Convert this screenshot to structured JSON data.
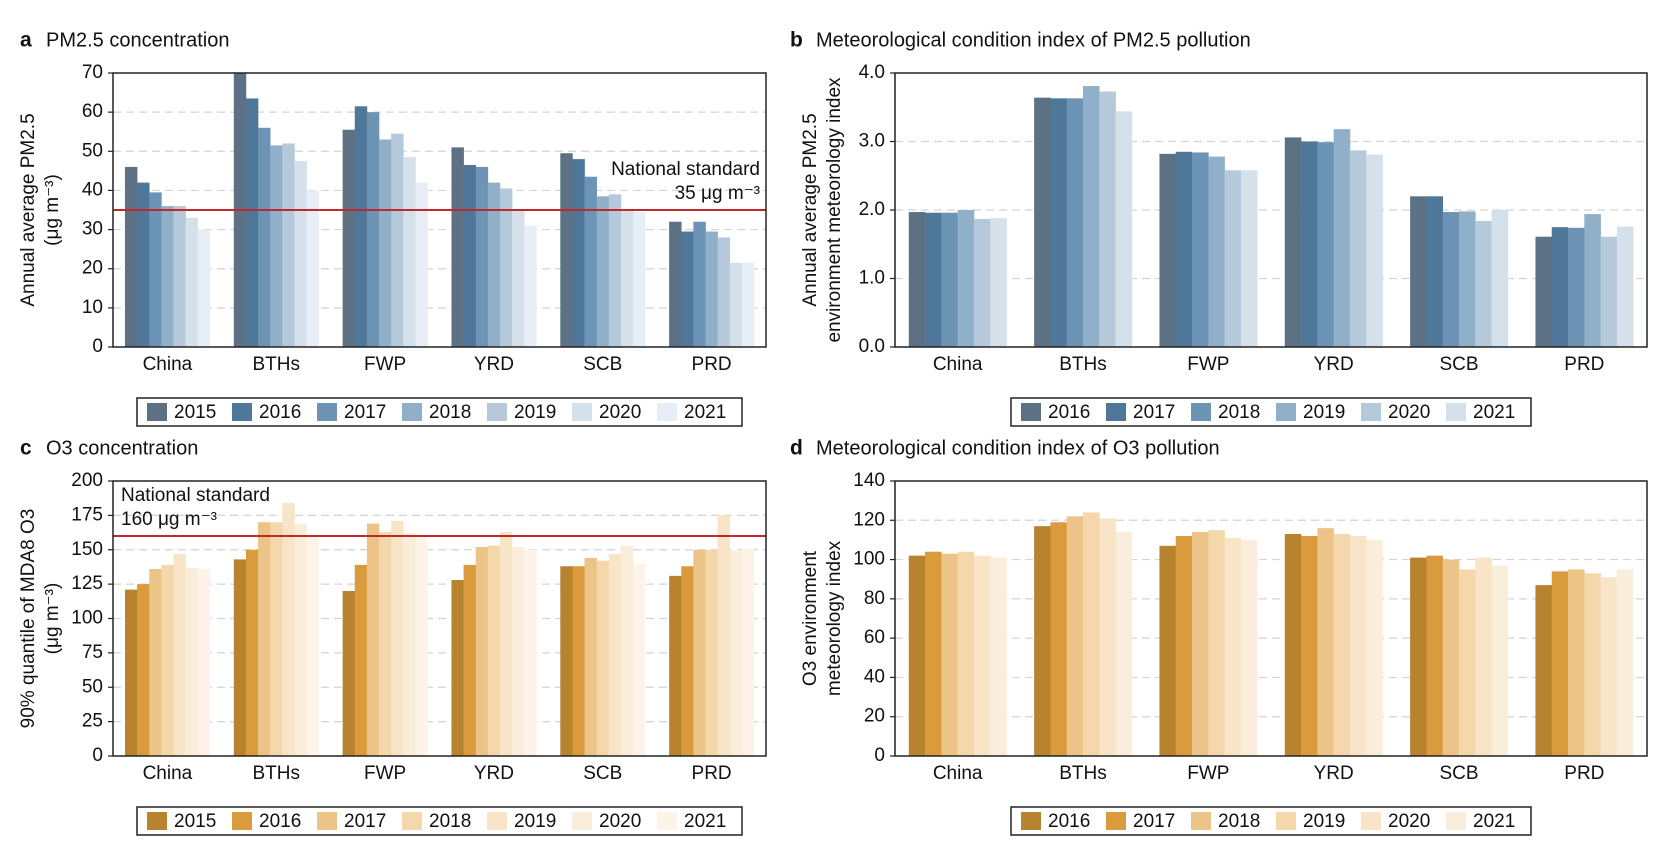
{
  "chart_data": [
    {
      "type": "bar",
      "panel": "a",
      "title": "PM2.5 concentration",
      "ylabel": [
        "Annual average PM2.5",
        "(μg m⁻³)"
      ],
      "categories": [
        "China",
        "BTHs",
        "FWP",
        "YRD",
        "SCB",
        "PRD"
      ],
      "series": [
        {
          "name": "2015",
          "color": "#5d7185",
          "values": [
            46,
            70,
            55.5,
            51,
            49.5,
            32
          ]
        },
        {
          "name": "2016",
          "color": "#4f7799",
          "values": [
            42,
            63.5,
            61.5,
            46.5,
            48,
            29.5
          ]
        },
        {
          "name": "2017",
          "color": "#6d93b5",
          "values": [
            39.5,
            56,
            60,
            46,
            43.5,
            32
          ]
        },
        {
          "name": "2018",
          "color": "#90b0ca",
          "values": [
            36,
            51.5,
            53,
            42,
            38.5,
            29.5
          ]
        },
        {
          "name": "2019",
          "color": "#b5c9db",
          "values": [
            36,
            52,
            54.5,
            40.5,
            39,
            28
          ]
        },
        {
          "name": "2020",
          "color": "#d4e0ea",
          "values": [
            33,
            47.5,
            48.5,
            35,
            35,
            21.5
          ]
        },
        {
          "name": "2021",
          "color": "#e7eef5",
          "values": [
            30,
            40,
            42,
            31,
            34.5,
            21.5
          ]
        }
      ],
      "ylim": [
        0,
        70
      ],
      "yticks": [
        0,
        10,
        20,
        30,
        40,
        50,
        60,
        70
      ],
      "grid": true,
      "reference_line": {
        "value": 35,
        "color": "#c0282b",
        "label": "National standard",
        "sublabel": "35 μg m⁻³"
      }
    },
    {
      "type": "bar",
      "panel": "b",
      "title": "Meteorological condition index of PM2.5 pollution",
      "ylabel": [
        "Annual average PM2.5",
        "environment meteorology index"
      ],
      "categories": [
        "China",
        "BTHs",
        "FWP",
        "YRD",
        "SCB",
        "PRD"
      ],
      "series": [
        {
          "name": "2016",
          "color": "#5d7185",
          "values": [
            1.97,
            3.64,
            2.82,
            3.06,
            2.2,
            1.61
          ]
        },
        {
          "name": "2017",
          "color": "#4f7799",
          "values": [
            1.96,
            3.63,
            2.85,
            3.0,
            2.2,
            1.75
          ]
        },
        {
          "name": "2018",
          "color": "#6d93b5",
          "values": [
            1.96,
            3.63,
            2.84,
            2.99,
            1.97,
            1.74
          ]
        },
        {
          "name": "2019",
          "color": "#90b0ca",
          "values": [
            2.0,
            3.81,
            2.78,
            3.18,
            1.98,
            1.94
          ]
        },
        {
          "name": "2020",
          "color": "#b5c9db",
          "values": [
            1.87,
            3.73,
            2.58,
            2.87,
            1.84,
            1.61
          ]
        },
        {
          "name": "2021",
          "color": "#d4e0ea",
          "values": [
            1.88,
            3.44,
            2.58,
            2.81,
            2.0,
            1.76
          ]
        }
      ],
      "ylim": [
        0,
        4
      ],
      "yticks": [
        {
          "value": 0,
          "label": "0.0"
        },
        {
          "value": 1,
          "label": "1.0"
        },
        {
          "value": 2,
          "label": "2.0"
        },
        {
          "value": 3,
          "label": "3.0"
        },
        {
          "value": 4,
          "label": "4.0"
        }
      ],
      "grid": true
    },
    {
      "type": "bar",
      "panel": "c",
      "title": "O3 concentration",
      "ylabel": [
        "90% quantile of MDA8 O3",
        "(μg m⁻³)"
      ],
      "categories": [
        "China",
        "BTHs",
        "FWP",
        "YRD",
        "SCB",
        "PRD"
      ],
      "series": [
        {
          "name": "2015",
          "color": "#b8832f",
          "values": [
            121,
            143,
            120,
            128,
            138,
            131
          ]
        },
        {
          "name": "2016",
          "color": "#d99b3b",
          "values": [
            125,
            150,
            139,
            139,
            138,
            138
          ]
        },
        {
          "name": "2017",
          "color": "#ecc488",
          "values": [
            136,
            170,
            169,
            152,
            144,
            150
          ]
        },
        {
          "name": "2018",
          "color": "#f4d8ab",
          "values": [
            139,
            170,
            163,
            153,
            142,
            150
          ]
        },
        {
          "name": "2019",
          "color": "#f8e5c8",
          "values": [
            147,
            184,
            171,
            163,
            147,
            175
          ]
        },
        {
          "name": "2020",
          "color": "#fbeddb",
          "values": [
            137,
            169,
            162,
            152,
            153,
            149
          ]
        },
        {
          "name": "2021",
          "color": "#fdf3e8",
          "values": [
            136,
            160,
            160,
            150,
            140,
            151
          ]
        }
      ],
      "ylim": [
        0,
        200
      ],
      "yticks": [
        0,
        25,
        50,
        75,
        100,
        125,
        150,
        175,
        200
      ],
      "grid": true,
      "reference_line": {
        "value": 160,
        "color": "#c0282b",
        "label": "National standard",
        "sublabel": "160 μg m⁻³"
      }
    },
    {
      "type": "bar",
      "panel": "d",
      "title": "Meteorological condition index of O3 pollution",
      "ylabel": [
        "O3 environment",
        "meteorology index"
      ],
      "categories": [
        "China",
        "BTHs",
        "FWP",
        "YRD",
        "SCB",
        "PRD"
      ],
      "series": [
        {
          "name": "2016",
          "color": "#b8832f",
          "values": [
            102,
            117,
            107,
            113,
            101,
            87
          ]
        },
        {
          "name": "2017",
          "color": "#d99b3b",
          "values": [
            104,
            119,
            112,
            112,
            102,
            94
          ]
        },
        {
          "name": "2018",
          "color": "#ecc488",
          "values": [
            103,
            122,
            114,
            116,
            100,
            95
          ]
        },
        {
          "name": "2019",
          "color": "#f4d8ab",
          "values": [
            104,
            124,
            115,
            113,
            95,
            93
          ]
        },
        {
          "name": "2020",
          "color": "#f8e5c8",
          "values": [
            102,
            121,
            111,
            112,
            101,
            91
          ]
        },
        {
          "name": "2021",
          "color": "#fbeddb",
          "values": [
            101,
            114,
            110,
            110,
            97,
            95
          ]
        }
      ],
      "ylim": [
        0,
        140
      ],
      "yticks": [
        0,
        20,
        40,
        60,
        80,
        100,
        120,
        140
      ],
      "grid": true
    }
  ]
}
